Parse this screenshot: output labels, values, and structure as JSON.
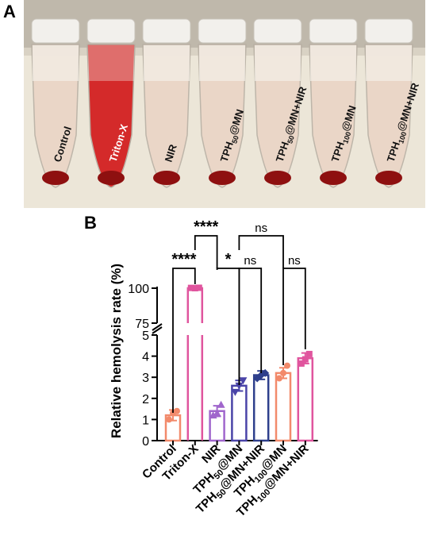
{
  "panels": {
    "a_label": "A",
    "b_label": "B"
  },
  "photo": {
    "tube_labels": [
      "Control",
      "Triton-X",
      "NIR",
      "TPH50@MN",
      "TPH50@MN+NIR",
      "TPH100@MN",
      "TPH100@MN+NIR"
    ],
    "colors": {
      "background": "#d9d2c4",
      "rack": "#ece6d8",
      "supernatant_clear": "#ead5c6",
      "supernatant_red": "#d42a2a",
      "pellet": "#8e1010"
    }
  },
  "chart_data": {
    "type": "bar",
    "ylabel": "Relative hemolysis rate (%)",
    "categories": [
      "Control",
      "Triton-X",
      "NIR",
      "TPH50@MN",
      "TPH50@MN+NIR",
      "TPH100@MN",
      "TPH100@MN+NIR"
    ],
    "values": [
      1.2,
      100,
      1.4,
      2.6,
      3.1,
      3.2,
      3.9
    ],
    "errors": [
      0.25,
      0.4,
      0.25,
      0.25,
      0.2,
      0.25,
      0.25
    ],
    "points": [
      [
        1.0,
        1.3,
        1.4
      ],
      [
        100.2,
        100.0,
        100.3
      ],
      [
        1.2,
        1.3,
        1.7
      ],
      [
        2.3,
        2.6,
        2.85
      ],
      [
        2.95,
        3.1,
        3.2
      ],
      [
        2.95,
        3.2,
        3.55
      ],
      [
        3.65,
        3.85,
        4.1
      ]
    ],
    "point_markers": [
      "circle",
      "square",
      "triangle-up",
      "triangle-down",
      "diamond",
      "circle",
      "square"
    ],
    "colors": [
      "#f28a6b",
      "#e0559e",
      "#a066cc",
      "#4a44a8",
      "#2e3f8c",
      "#f28a6b",
      "#e0559e"
    ],
    "lower_axis": {
      "ylim": [
        0,
        5
      ],
      "ticks": [
        "0",
        "1",
        "2",
        "3",
        "4",
        "5"
      ]
    },
    "upper_axis": {
      "ylim": [
        75,
        100
      ],
      "ticks": [
        "75",
        "100"
      ]
    },
    "axis_break": true,
    "significance": [
      {
        "from": 0,
        "to": 1,
        "label": "****"
      },
      {
        "from": 1,
        "to": 2,
        "label": "****"
      },
      {
        "from": 2,
        "to": 3,
        "label": "*"
      },
      {
        "from": 3,
        "to": 4,
        "label": "ns"
      },
      {
        "from": 3,
        "to": 5,
        "label": "ns"
      },
      {
        "from": 5,
        "to": 6,
        "label": "ns"
      }
    ]
  }
}
